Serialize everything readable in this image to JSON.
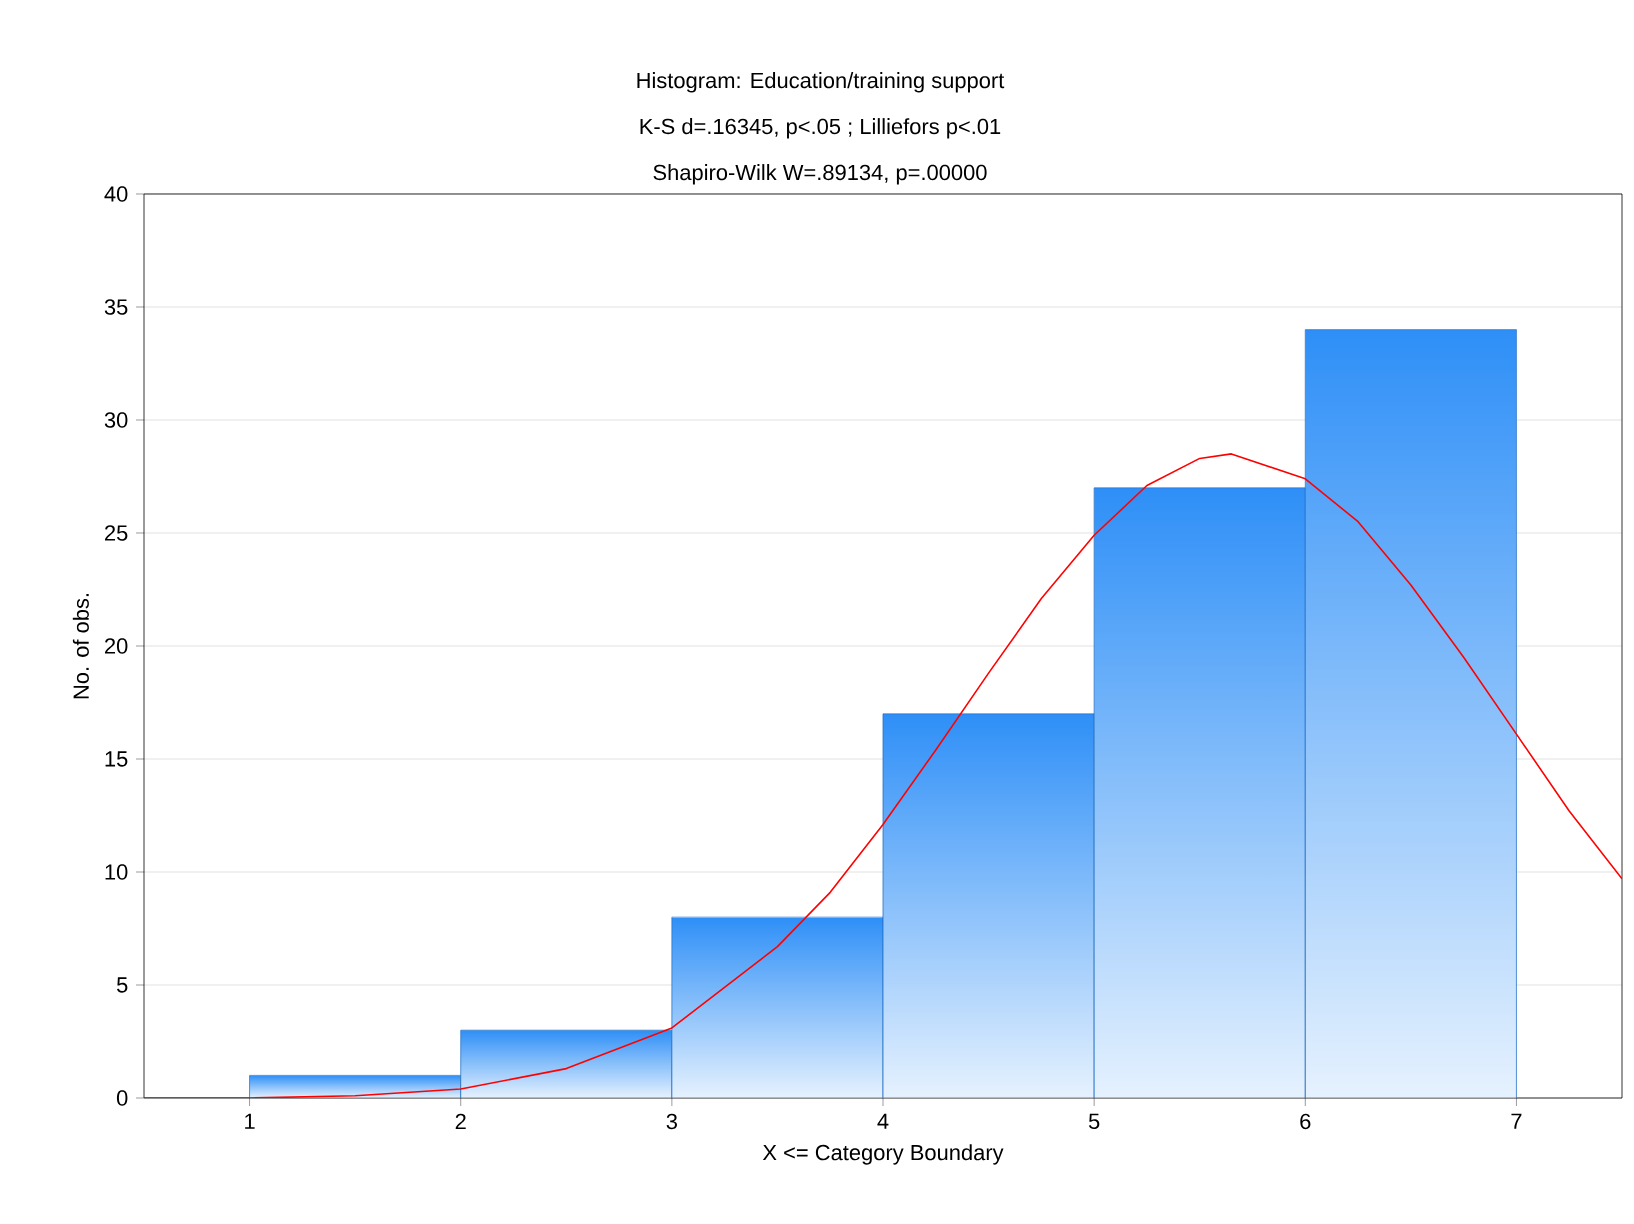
{
  "chart_data": {
    "type": "histogram",
    "title": "Histogram: Education/training support",
    "subtitle": "K-S d=.16345, p<.05 ; Lilliefors p<.01",
    "annotations": [
      "Shapiro-Wilk W=.89134, p=.00000"
    ],
    "xlabel": "X <= Category Boundary",
    "ylabel": "No. of obs.",
    "bins": [
      1,
      2,
      3,
      4,
      5,
      6,
      7
    ],
    "values": [
      1,
      3,
      8,
      17,
      27,
      34
    ],
    "color": "#2e8ff7",
    "series": [
      {
        "type": "line",
        "color": "#ff0000",
        "x": [
          0.5,
          1,
          1.5,
          2,
          2.5,
          3,
          3.5,
          3.75,
          4,
          4.25,
          4.5,
          4.75,
          5,
          5.25,
          5.5,
          5.65,
          6,
          6.25,
          6.5,
          6.75,
          7,
          7.25,
          7.5
        ],
        "values": [
          0,
          0,
          0.1,
          0.4,
          1.3,
          3.1,
          6.7,
          9.1,
          12.1,
          15.4,
          18.8,
          22.1,
          24.9,
          27.1,
          28.3,
          28.5,
          27.4,
          25.5,
          22.7,
          19.5,
          16.1,
          12.7,
          9.7
        ]
      }
    ],
    "xlim": [
      0.5,
      7.5
    ],
    "ylim": [
      0,
      40
    ],
    "xticks": [
      1,
      2,
      3,
      4,
      5,
      6,
      7
    ],
    "yticks": [
      0,
      5,
      10,
      15,
      20,
      25,
      30,
      35,
      40
    ],
    "grid": "y"
  }
}
